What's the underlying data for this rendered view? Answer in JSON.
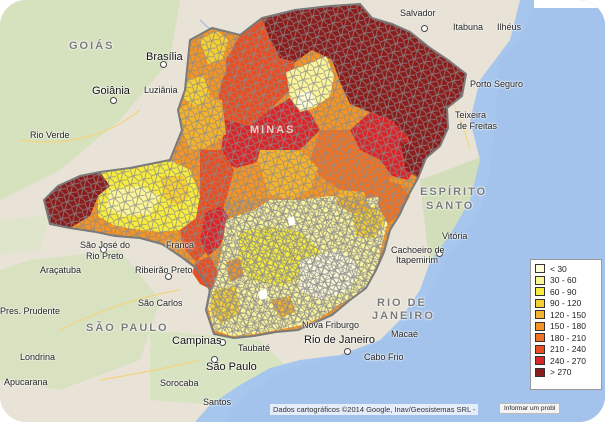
{
  "labels": {
    "goias_state": "GOIÁS",
    "brasilia": "Brasília",
    "luziania": "Luziânia",
    "goiania": "Goiânia",
    "rio_verde": "Rio Verde",
    "salvador": "Salvador",
    "itabuna": "Itabuna",
    "ilheus": "Ilhéus",
    "porto_seguro": "Porto Seguro",
    "teixeira": "Teixeira",
    "de_freitas": "de Freitas",
    "espirito": "ESPÍRITO",
    "santo": "SANTO",
    "vitoria": "Vitória",
    "cachoeiro": "Cachoeiro de",
    "itapemirim": "Itapemirim",
    "sao_jose": "São José do",
    "rio_preto": "Rio Preto",
    "aracatuba": "Araçatuba",
    "ribeirao": "Ribeirão Preto",
    "franca": "Franca",
    "pres_prudente": "Pres. Prudente",
    "sao_carlos": "São Carlos",
    "sao_paulo_state": "SÃO PAULO",
    "rio_state_1": "RIO DE",
    "rio_state_2": "JANEIRO",
    "nova_friburgo": "Nova Friburgo",
    "macae": "Macaé",
    "rio": "Rio de Janeiro",
    "cabo_frio": "Cabo Frio",
    "campinas": "Campinas",
    "taubate": "Taubaté",
    "sao_paulo": "São Paulo",
    "londrina": "Londrina",
    "sorocaba": "Sorocaba",
    "santos": "Santos",
    "apucarana": "Apucarana",
    "minas_state": "MINAS"
  },
  "legend": {
    "items": [
      {
        "label": "< 30",
        "color": "#fdfbd8"
      },
      {
        "label": "30 - 60",
        "color": "#fbf59a"
      },
      {
        "label": "60 - 90",
        "color": "#f7ec3e"
      },
      {
        "label": "90 - 120",
        "color": "#f6cf32"
      },
      {
        "label": "120 - 150",
        "color": "#f5b22c"
      },
      {
        "label": "150 - 180",
        "color": "#f29426"
      },
      {
        "label": "180 - 210",
        "color": "#ee7324"
      },
      {
        "label": "210 - 240",
        "color": "#e84e22"
      },
      {
        "label": "240 - 270",
        "color": "#d9262a"
      },
      {
        "label": "> 270",
        "color": "#8c1d1d"
      }
    ]
  },
  "attribution": "Dados cartográficos ©2014 Google, Inav/Geosistemas SRL -",
  "report_link": "Informar um probl"
}
